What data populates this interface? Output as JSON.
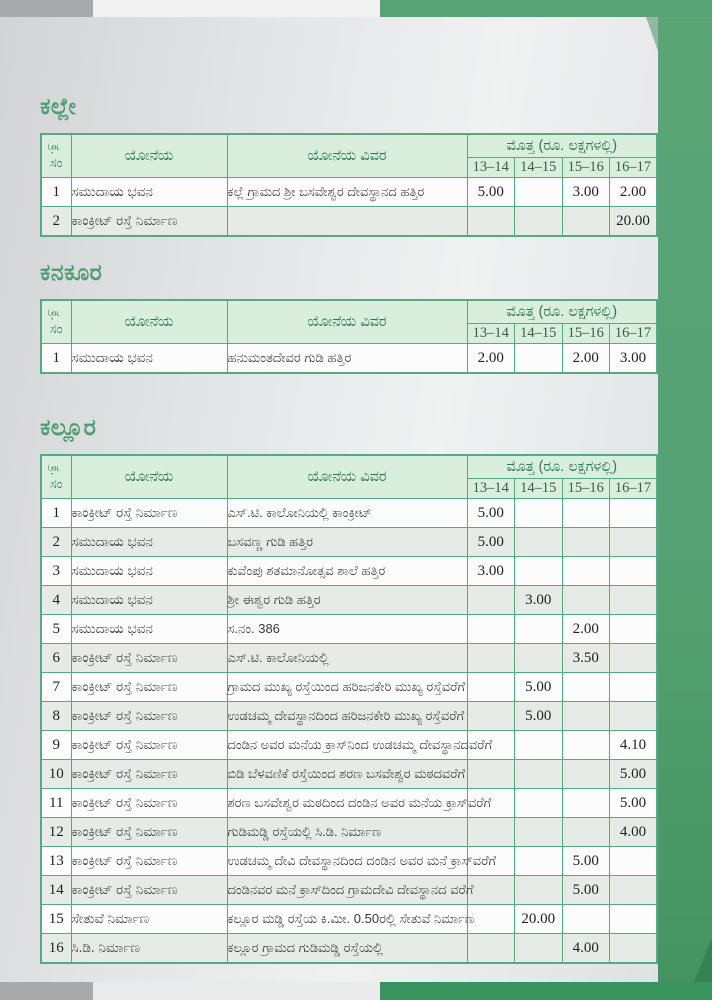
{
  "page": {
    "accent_green": "#57a375",
    "accent_green_dark": "#38935c",
    "band_gray": "#a8aaac",
    "table_border": "#53ab82",
    "header_bg": "#d9eedd",
    "header_text": "#2c7a50",
    "title_color": "#4f9e72"
  },
  "table_header": {
    "sno_line1": "ಕ್ರ.",
    "sno_line2": "ಸಂ",
    "scheme": "ಯೋನೆಯ",
    "details": "ಯೋನೆಯ ವಿವರ",
    "amount": "ಮೊತ್ತ (ರೂ. ಲಕ್ಷಗಳಲ್ಲಿ)",
    "years": [
      "13–14",
      "14–15",
      "15–16",
      "16–17"
    ]
  },
  "sections": [
    {
      "title": "ಕಲ್ಲೇ",
      "rows": [
        {
          "sno": "1",
          "scheme": "ಸಮುದಾಯ ಭವನ",
          "details": "ಕಲ್ಲೆ ಗ್ರಾಮದ ಶ್ರೀ ಬಸವೇಶ್ವರ ದೇವಸ್ಥಾನದ ಹತ್ತಿರ",
          "amounts": [
            "5.00",
            "",
            "3.00",
            "2.00"
          ]
        },
        {
          "sno": "2",
          "scheme": "ಕಾಂಕ್ರೀಟ್ ರಸ್ತೆ ನಿರ್ಮಾಣ",
          "details": "",
          "amounts": [
            "",
            "",
            "",
            "20.00"
          ]
        }
      ]
    },
    {
      "title": "ಕನಕೂರ",
      "rows": [
        {
          "sno": "1",
          "scheme": "ಸಮುದಾಯ ಭವನ",
          "details": "ಹನುಮಂತದೇವರ ಗುಡಿ ಹತ್ತಿರ",
          "amounts": [
            "2.00",
            "",
            "2.00",
            "3.00"
          ]
        }
      ]
    },
    {
      "title": "ಕಲ್ಲೂರ",
      "rows": [
        {
          "sno": "1",
          "scheme": "ಕಾಂಕ್ರೀಟ್ ರಸ್ತೆ ನಿರ್ಮಾಣ",
          "details": "ಎಸ್.ಟಿ. ಕಾಲೋನಿಯಲ್ಲಿ ಕಾಂಕ್ರೀಟ್",
          "amounts": [
            "5.00",
            "",
            "",
            ""
          ]
        },
        {
          "sno": "2",
          "scheme": "ಸಮುದಾಯ ಭವನ",
          "details": "ಬಸವಣ್ಣ ಗುಡಿ ಹತ್ತಿರ",
          "amounts": [
            "5.00",
            "",
            "",
            ""
          ]
        },
        {
          "sno": "3",
          "scheme": "ಸಮುದಾಯ ಭವನ",
          "details": "ಕುವೆಂಪು ಶತಮಾನೋತ್ಸವ ಶಾಲೆ ಹತ್ತಿರ",
          "amounts": [
            "3.00",
            "",
            "",
            ""
          ]
        },
        {
          "sno": "4",
          "scheme": "ಸಮುದಾಯ ಭವನ",
          "details": "ಶ್ರೀ ಈಶ್ವರ ಗುಡಿ ಹತ್ತಿರ",
          "amounts": [
            "",
            "3.00",
            "",
            ""
          ]
        },
        {
          "sno": "5",
          "scheme": "ಸಮುದಾಯ ಭವನ",
          "details": "ಸ.ನಂ. 386",
          "amounts": [
            "",
            "",
            "2.00",
            ""
          ]
        },
        {
          "sno": "6",
          "scheme": "ಕಾಂಕ್ರೀಟ್ ರಸ್ತೆ ನಿರ್ಮಾಣ",
          "details": "ಎಸ್.ಟಿ. ಕಾಲೋನಿಯಲ್ಲಿ",
          "amounts": [
            "",
            "",
            "3.50",
            ""
          ]
        },
        {
          "sno": "7",
          "scheme": "ಕಾಂಕ್ರೀಟ್ ರಸ್ತೆ ನಿರ್ಮಾಣ",
          "details": "ಗ್ರಾಮದ ಮುಖ್ಯ ರಸ್ತೆಯಿಂದ ಹರಿಜನಕೇರಿ ಮುಖ್ಯ ರಸ್ತೆವರೆಗೆ",
          "amounts": [
            "",
            "5.00",
            "",
            ""
          ]
        },
        {
          "sno": "8",
          "scheme": "ಕಾಂಕ್ರೀಟ್ ರಸ್ತೆ ನಿರ್ಮಾಣ",
          "details": "ಉಡಚಮ್ಮ ದೇವಸ್ಥಾನದಿಂದ ಹರಿಜನಕೇರಿ ಮುಖ್ಯ ರಸ್ತೆವರೆಗೆ",
          "amounts": [
            "",
            "5.00",
            "",
            ""
          ]
        },
        {
          "sno": "9",
          "scheme": "ಕಾಂಕ್ರೀಟ್ ರಸ್ತೆ ನಿರ್ಮಾಣ",
          "details": "ದಂಡಿನ ಅವರ ಮನೆಯ ಕ್ರಾಸ್‌ನಿಂದ ಉಡಚಮ್ಮ ದೇವಸ್ಥಾನದವರೆಗೆ",
          "amounts": [
            "",
            "",
            "",
            "4.10"
          ]
        },
        {
          "sno": "10",
          "scheme": "ಕಾಂಕ್ರೀಟ್ ರಸ್ತೆ ನಿರ್ಮಾಣ",
          "details": "ಬಿಡಿ ಬೆಳವಣಿಕೆ ರಸ್ತೆಯಿಂದ ಶರಣ ಬಸವೇಶ್ವರ ಮಠದವರೆಗೆ",
          "amounts": [
            "",
            "",
            "",
            "5.00"
          ]
        },
        {
          "sno": "11",
          "scheme": "ಕಾಂಕ್ರೀಟ್ ರಸ್ತೆ ನಿರ್ಮಾಣ",
          "details": "ಶರಣ ಬಸವೇಶ್ವರ ಮಠದಿಂದ ದಂಡಿನ ಅವರ ಮನೆಯ ಕ್ರಾಸ್‌ವರೆಗೆ",
          "amounts": [
            "",
            "",
            "",
            "5.00"
          ]
        },
        {
          "sno": "12",
          "scheme": "ಕಾಂಕ್ರೀಟ್ ರಸ್ತೆ ನಿರ್ಮಾಣ",
          "details": "ಗುಡಿಮಡ್ಡಿ ರಸ್ತೆಯಲ್ಲಿ ಸಿ.ಡಿ. ನಿರ್ಮಾಣ",
          "amounts": [
            "",
            "",
            "",
            "4.00"
          ]
        },
        {
          "sno": "13",
          "scheme": "ಕಾಂಕ್ರೀಟ್ ರಸ್ತೆ ನಿರ್ಮಾಣ",
          "details": "ಉಡಚಮ್ಮ ದೇವಿ ದೇವಸ್ಥಾನದಿಂದ ದಂಡಿನ ಅವರ ಮನೆ ಕ್ರಾಸ್‌ವರೆಗೆ",
          "amounts": [
            "",
            "",
            "5.00",
            ""
          ]
        },
        {
          "sno": "14",
          "scheme": "ಕಾಂಕ್ರೀಟ್ ರಸ್ತೆ ನಿರ್ಮಾಣ",
          "details": "ದಂಡಿನವರ ಮನೆ ಕ್ರಾಸ್‌ದಿಂದ ಗ್ರಾಮದೇವಿ ದೇವಸ್ಥಾನದ ವರೆಗೆ",
          "amounts": [
            "",
            "",
            "5.00",
            ""
          ]
        },
        {
          "sno": "15",
          "scheme": "ಸೇತುವೆ ನಿರ್ಮಾಣ",
          "details": "ಕಲ್ಲೂರ ಮಡ್ಡಿ ರಸ್ತೆಯ ಕಿ.ಮೀ. 0.50ರಲ್ಲಿ ಸೇತುವೆ ನಿರ್ಮಾಣ",
          "amounts": [
            "",
            "20.00",
            "",
            ""
          ]
        },
        {
          "sno": "16",
          "scheme": "ಸಿ.ಡಿ. ನಿರ್ಮಾಣ",
          "details": "ಕಲ್ಲೂರ ಗ್ರಾಮದ ಗುಡಿಮಡ್ಡಿ ರಸ್ತೆಯಲ್ಲಿ",
          "amounts": [
            "",
            "",
            "4.00",
            ""
          ]
        }
      ]
    }
  ]
}
